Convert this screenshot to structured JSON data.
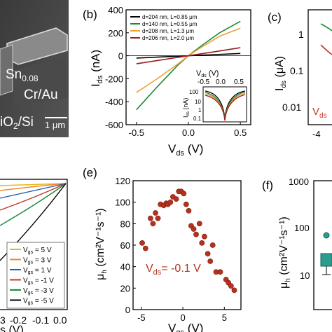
{
  "panel_a": {
    "material_label_prefix": "Sn",
    "material_label_sub": "0.08",
    "contact_label": "Cr/Au",
    "substrate_label": "iO",
    "substrate_sub": "2",
    "substrate_suffix": "/Si",
    "scale_bar_label": "1 μm"
  },
  "panel_b": {
    "letter": "(b)",
    "ylabel": "I",
    "ylabel_sub": "ds",
    "ylabel_unit": " (nA)",
    "xlabel": "V",
    "xlabel_sub": "ds",
    "xlabel_unit": " (V)",
    "inset": {
      "xlabel": "V",
      "xlabel_sub": "ds",
      "xlabel_unit": " (V)",
      "xticks": [
        "-0.5",
        "0.0",
        "0.5"
      ],
      "ylabel": "I",
      "ylabel_sub": "ds",
      "ylabel_unit": " (nA)",
      "yticks": [
        "100",
        "10",
        "1",
        "0.1"
      ]
    }
  },
  "panel_c": {
    "letter": "(c)",
    "ylabel": "I",
    "ylabel_sub": "ds",
    "ylabel_unit": " (μA)",
    "yticks": [
      "1",
      "0.1",
      "0.01"
    ],
    "xtick": "-4",
    "annotation": "V",
    "annotation_sub": "ds"
  },
  "panel_d": {
    "xticks": [
      "3",
      "-0.2",
      "-0.1",
      "0.0"
    ],
    "xlabel_tail": "s (V)",
    "legend": [
      {
        "label": "V",
        "sub": "gs",
        "value": "= 5 V",
        "color": "#e8b520"
      },
      {
        "label": "V",
        "sub": "gs",
        "value": "= 3 V",
        "color": "#f08a2a"
      },
      {
        "label": "V",
        "sub": "gs",
        "value": "= 1 V",
        "color": "#1f5fb4"
      },
      {
        "label": "V",
        "sub": "gs",
        "value": "= -1 V",
        "color": "#c0392b"
      },
      {
        "label": "V",
        "sub": "gs",
        "value": "= -3 V",
        "color": "#1a8a3a"
      },
      {
        "label": "V",
        "sub": "gs",
        "value": "= -5 V",
        "color": "#000000"
      }
    ]
  },
  "panel_e": {
    "letter": "(e)",
    "ylabel": "μ",
    "ylabel_sub": "h",
    "ylabel_unit": " (cm²V⁻¹s⁻¹)",
    "xlabel": "V",
    "xlabel_sub": "gs",
    "xlabel_unit": " (V)",
    "annotation": "V",
    "annotation_sub": "ds",
    "annotation_value": "= -0.1 V"
  },
  "panel_f": {
    "letter": "(f)",
    "ylabel": "μ",
    "ylabel_sub": "h",
    "ylabel_unit": " (cm²V⁻¹s⁻¹)",
    "yticks": [
      "1000",
      "100",
      "10"
    ]
  },
  "chart_data": [
    {
      "panel": "b",
      "type": "line",
      "xlim": [
        -0.6,
        0.6
      ],
      "ylim": [
        -600,
        400
      ],
      "xticks": [
        -0.5,
        0.0,
        0.5
      ],
      "yticks": [
        400,
        200,
        0,
        -200,
        -400,
        -600
      ],
      "series": [
        {
          "name": "d=204 nm, L=0.85 μm",
          "color": "#000000",
          "x": [
            -0.5,
            -0.25,
            0.0,
            0.25,
            0.5
          ],
          "y": [
            -20,
            -10,
            0,
            10,
            20
          ]
        },
        {
          "name": "d=140 nm, L=0.55 μm",
          "color": "#1a8a3a",
          "x": [
            -0.5,
            -0.3,
            -0.1,
            0.0,
            0.1,
            0.3,
            0.5
          ],
          "y": [
            -470,
            -270,
            -80,
            0,
            70,
            200,
            300
          ]
        },
        {
          "name": "d=208 nm, L=1.3 μm",
          "color": "#f0a030",
          "x": [
            -0.5,
            -0.3,
            -0.1,
            0.0,
            0.1,
            0.3,
            0.5
          ],
          "y": [
            -320,
            -200,
            -70,
            0,
            60,
            170,
            240
          ]
        },
        {
          "name": "d=206 nm, L=2.0 μm",
          "color": "#9b1c1c",
          "x": [
            -0.5,
            -0.25,
            0.0,
            0.25,
            0.5
          ],
          "y": [
            -70,
            -35,
            0,
            35,
            70
          ]
        }
      ]
    },
    {
      "panel": "e",
      "type": "scatter",
      "xlim": [
        -6,
        7
      ],
      "ylim": [
        0,
        120
      ],
      "xticks": [
        -5,
        0,
        5
      ],
      "yticks": [
        0,
        20,
        40,
        60,
        80,
        100,
        120
      ],
      "series": [
        {
          "color": "#b5321e",
          "x": [
            -4.9,
            -4.5,
            -3.9,
            -3.6,
            -3.3,
            -3.0,
            -2.7,
            -2.3,
            -2.0,
            -1.8,
            -1.5,
            -1.2,
            -0.8,
            -0.5,
            -0.2,
            0.1,
            0.4,
            0.7,
            1.0,
            1.3,
            1.6,
            2.0,
            2.3,
            2.6,
            3.0,
            3.3,
            3.6,
            4.0,
            4.5,
            5.2,
            5.5,
            5.8,
            6.2
          ],
          "y": [
            62,
            57,
            85,
            80,
            90,
            85,
            98,
            97,
            99,
            98,
            100,
            105,
            103,
            110,
            110,
            108,
            98,
            92,
            78,
            75,
            70,
            80,
            62,
            68,
            52,
            45,
            60,
            35,
            35,
            28,
            25,
            22,
            18
          ]
        }
      ]
    }
  ]
}
